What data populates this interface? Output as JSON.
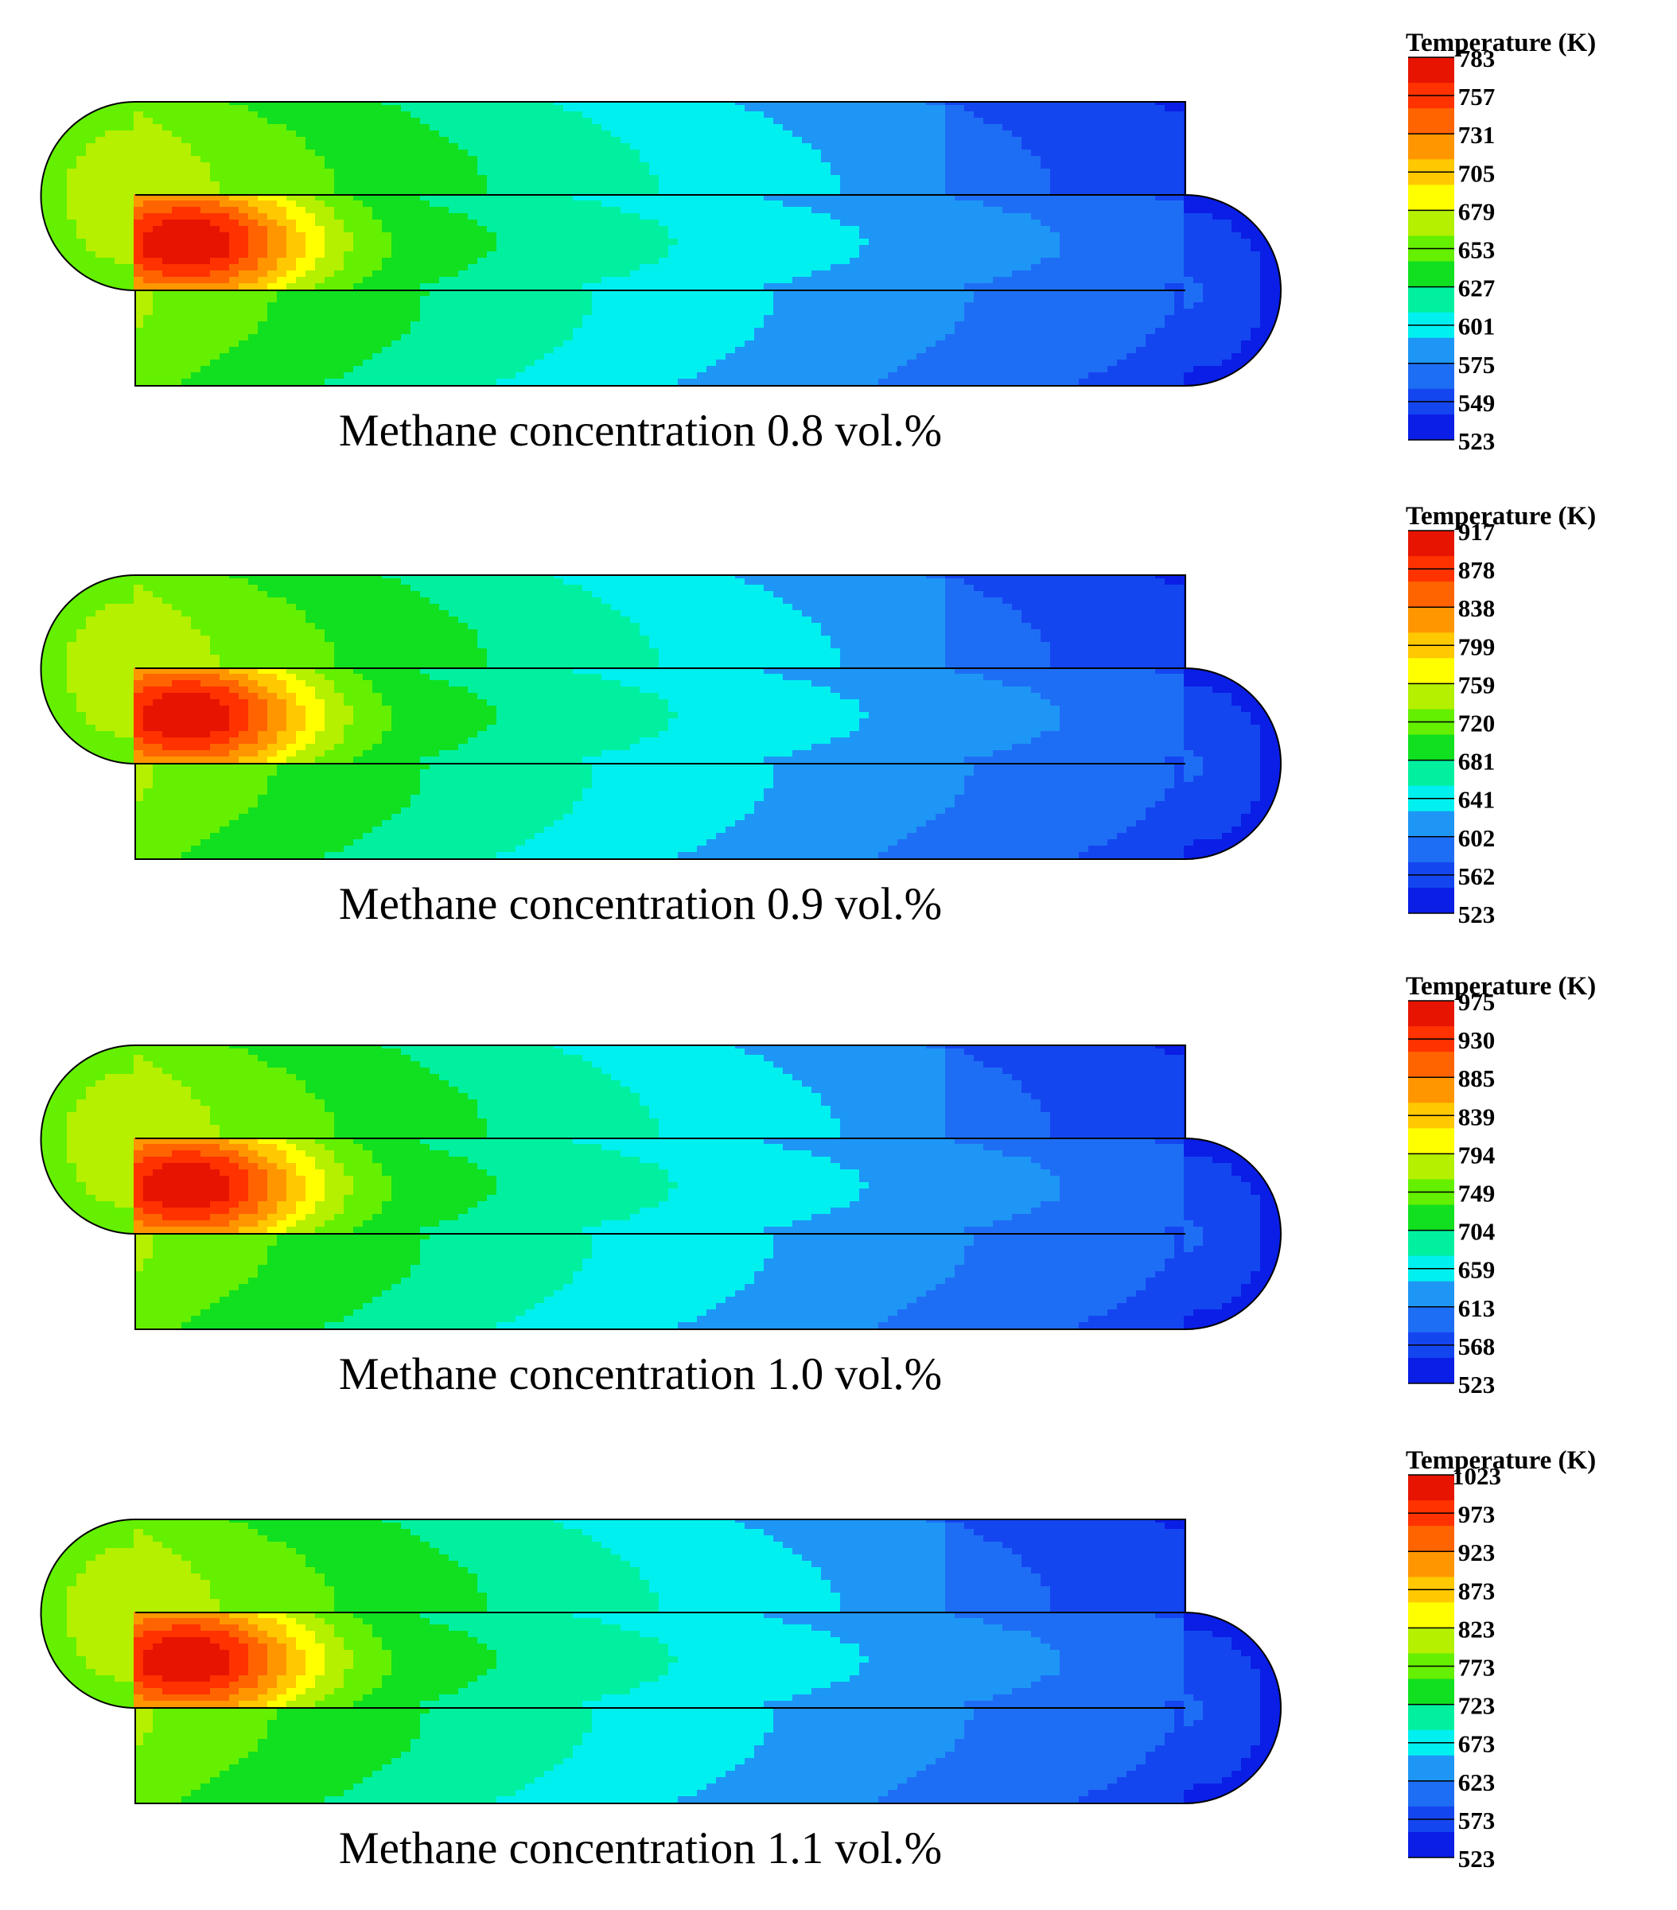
{
  "chart_data": [
    {
      "type": "heatmap",
      "title": "Methane concentration 0.8 vol.%",
      "legend_title": "Temperature (K)",
      "colorbar_ticks": [
        "783",
        "757",
        "731",
        "705",
        "679",
        "653",
        "627",
        "601",
        "575",
        "549",
        "523"
      ],
      "range": [
        523,
        783
      ]
    },
    {
      "type": "heatmap",
      "title": "Methane concentration 0.9 vol.%",
      "legend_title": "Temperature (K)",
      "colorbar_ticks": [
        "917",
        "878",
        "838",
        "799",
        "759",
        "720",
        "681",
        "641",
        "602",
        "562",
        "523"
      ],
      "range": [
        523,
        917
      ]
    },
    {
      "type": "heatmap",
      "title": "Methane concentration 1.0 vol.%",
      "legend_title": "Temperature (K)",
      "colorbar_ticks": [
        "975",
        "930",
        "885",
        "839",
        "794",
        "749",
        "704",
        "659",
        "613",
        "568",
        "523"
      ],
      "range": [
        523,
        975
      ]
    },
    {
      "type": "heatmap",
      "title": "Methane concentration 1.1 vol.%",
      "legend_title": "Temperature (K)",
      "colorbar_ticks": [
        "1023",
        "973",
        "923",
        "873",
        "823",
        "773",
        "723",
        "673",
        "623",
        "573",
        "523"
      ],
      "range": [
        523,
        1023
      ]
    }
  ],
  "colors": {
    "colormap": [
      "#0a1ee6",
      "#1446f0",
      "#1e6ef5",
      "#1e96f5",
      "#00f0f0",
      "#00f0a0",
      "#10e020",
      "#64f000",
      "#b4f000",
      "#ffff00",
      "#ffc800",
      "#ff9600",
      "#ff6400",
      "#ff3200",
      "#e61400"
    ],
    "outline": "#000000"
  }
}
